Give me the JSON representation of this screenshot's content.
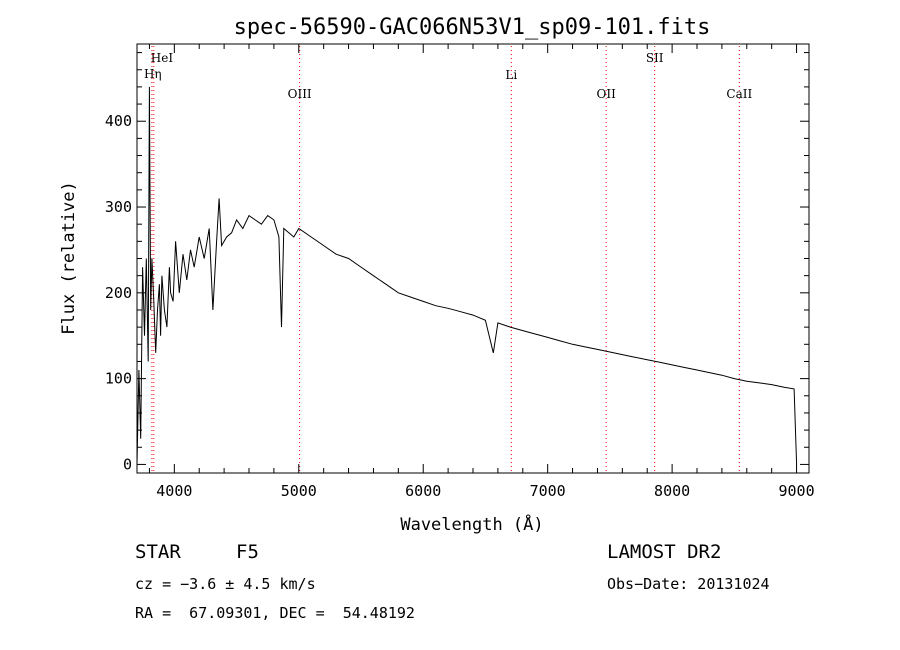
{
  "chart_data": {
    "type": "line",
    "title": "spec-56590-GAC066N53V1_sp09-101.fits",
    "xlabel": "Wavelength (Å)",
    "ylabel": "Flux (relative)",
    "xlim": [
      3700,
      9100
    ],
    "ylim": [
      -10,
      490
    ],
    "x_ticks": [
      4000,
      5000,
      6000,
      7000,
      8000,
      9000
    ],
    "y_ticks": [
      0,
      100,
      200,
      300,
      400
    ],
    "x_tick_labels": [
      "4000",
      "5000",
      "6000",
      "7000",
      "8000",
      "9000"
    ],
    "y_tick_labels": [
      "0",
      "100",
      "200",
      "300",
      "400"
    ],
    "grid": false,
    "line_color": "#000000",
    "marker_color": "#ff0000",
    "series": [
      {
        "x": [
          3700,
          3715,
          3730,
          3745,
          3760,
          3775,
          3790,
          3800,
          3810,
          3820,
          3835,
          3850,
          3865,
          3880,
          3890,
          3900,
          3920,
          3940,
          3960,
          3970,
          3990,
          4010,
          4040,
          4070,
          4100,
          4130,
          4160,
          4200,
          4240,
          4280,
          4310,
          4340,
          4360,
          4380,
          4420,
          4460,
          4500,
          4550,
          4600,
          4650,
          4700,
          4750,
          4800,
          4840,
          4861,
          4880,
          4920,
          4960,
          5000,
          5100,
          5200,
          5300,
          5400,
          5500,
          5600,
          5700,
          5800,
          5900,
          6000,
          6100,
          6200,
          6300,
          6400,
          6500,
          6563,
          6600,
          6700,
          6800,
          6900,
          7000,
          7100,
          7200,
          7300,
          7400,
          7500,
          7600,
          7700,
          7800,
          7900,
          8000,
          8100,
          8200,
          8300,
          8400,
          8500,
          8600,
          8700,
          8800,
          8900,
          8980,
          9000
        ],
        "y": [
          0,
          110,
          30,
          230,
          150,
          240,
          120,
          440,
          180,
          240,
          190,
          130,
          180,
          210,
          150,
          220,
          180,
          160,
          230,
          200,
          190,
          260,
          200,
          245,
          215,
          250,
          230,
          265,
          240,
          275,
          180,
          260,
          310,
          255,
          265,
          270,
          285,
          275,
          290,
          285,
          280,
          290,
          285,
          265,
          160,
          275,
          270,
          265,
          275,
          265,
          255,
          245,
          240,
          230,
          220,
          210,
          200,
          195,
          190,
          185,
          182,
          178,
          174,
          168,
          130,
          165,
          160,
          156,
          152,
          148,
          144,
          140,
          137,
          134,
          131,
          128,
          125,
          122,
          119,
          116,
          113,
          110,
          107,
          104,
          100,
          97,
          95,
          93,
          90,
          88,
          0
        ]
      }
    ],
    "annotations": [
      {
        "label": "HeI",
        "x": 3820
      },
      {
        "label": "Hη",
        "x": 3835
      },
      {
        "label": "OIII",
        "x": 5007
      },
      {
        "label": "Li",
        "x": 6708
      },
      {
        "label": "OII",
        "x": 7470
      },
      {
        "label": "SII",
        "x": 7860
      },
      {
        "label": "CaII",
        "x": 8540
      }
    ]
  },
  "info": {
    "object_class": "STAR",
    "subclass": "F5",
    "survey": "LAMOST DR2",
    "redshift": "cz = −3.6 ± 4.5 km/s",
    "obs_date": "Obs−Date: 20131024",
    "coords": "RA =  67.09301, DEC =  54.48192"
  }
}
